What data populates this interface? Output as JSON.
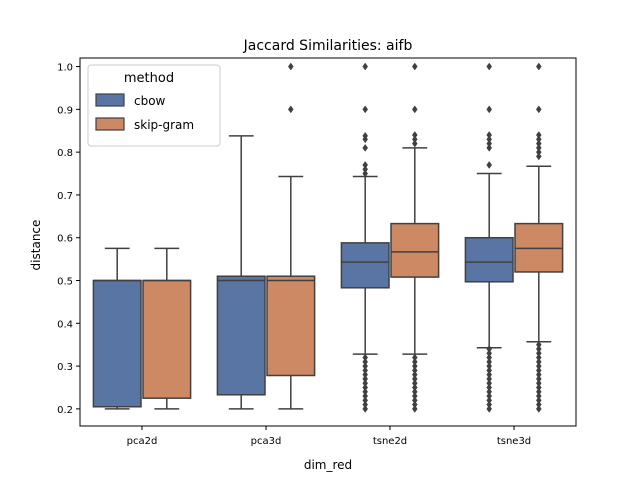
{
  "chart_data": {
    "type": "box",
    "title": "Jaccard Similarities: aifb",
    "xlabel": "dim_red",
    "ylabel": "distance",
    "categories": [
      "pca2d",
      "pca3d",
      "tsne2d",
      "tsne3d"
    ],
    "ylim": [
      0.16,
      1.02
    ],
    "yticks": [
      0.2,
      0.3,
      0.4,
      0.5,
      0.6,
      0.7,
      0.8,
      0.9,
      1.0
    ],
    "ytick_labels": [
      "0.2",
      "0.3",
      "0.4",
      "0.5",
      "0.6",
      "0.7",
      "0.8",
      "0.9",
      "1.0"
    ],
    "grid": false,
    "legend": {
      "title": "method",
      "position": "top-left"
    },
    "series": [
      {
        "name": "cbow",
        "color": "#5975a4",
        "boxes": [
          {
            "whislo": 0.2,
            "q1": 0.205,
            "med": 0.5,
            "q3": 0.5,
            "whishi": 0.575,
            "fliers": []
          },
          {
            "whislo": 0.2,
            "q1": 0.233,
            "med": 0.5,
            "q3": 0.51,
            "whishi": 0.838,
            "fliers": []
          },
          {
            "whislo": 0.328,
            "q1": 0.483,
            "med": 0.543,
            "q3": 0.588,
            "whishi": 0.743,
            "fliers": [
              1.0,
              0.9,
              0.838,
              0.83,
              0.81,
              0.77,
              0.76,
              0.75,
              0.32,
              0.31,
              0.3,
              0.29,
              0.28,
              0.27,
              0.26,
              0.25,
              0.24,
              0.23,
              0.22,
              0.21,
              0.2
            ]
          },
          {
            "whislo": 0.343,
            "q1": 0.497,
            "med": 0.543,
            "q3": 0.6,
            "whishi": 0.75,
            "fliers": [
              1.0,
              0.9,
              0.84,
              0.83,
              0.82,
              0.81,
              0.77,
              0.34,
              0.33,
              0.32,
              0.31,
              0.3,
              0.29,
              0.28,
              0.27,
              0.26,
              0.25,
              0.24,
              0.23,
              0.22,
              0.21,
              0.2
            ]
          }
        ]
      },
      {
        "name": "skip-gram",
        "color": "#cc8963",
        "boxes": [
          {
            "whislo": 0.2,
            "q1": 0.225,
            "med": 0.5,
            "q3": 0.5,
            "whishi": 0.575,
            "fliers": []
          },
          {
            "whislo": 0.2,
            "q1": 0.278,
            "med": 0.5,
            "q3": 0.51,
            "whishi": 0.743,
            "fliers": [
              1.0,
              0.9
            ]
          },
          {
            "whislo": 0.328,
            "q1": 0.508,
            "med": 0.567,
            "q3": 0.633,
            "whishi": 0.81,
            "fliers": [
              1.0,
              0.9,
              0.84,
              0.83,
              0.82,
              0.32,
              0.31,
              0.3,
              0.29,
              0.28,
              0.27,
              0.26,
              0.25,
              0.24,
              0.23,
              0.22,
              0.21,
              0.2
            ]
          },
          {
            "whislo": 0.357,
            "q1": 0.52,
            "med": 0.575,
            "q3": 0.633,
            "whishi": 0.767,
            "fliers": [
              1.0,
              0.9,
              0.84,
              0.83,
              0.82,
              0.81,
              0.8,
              0.79,
              0.35,
              0.34,
              0.33,
              0.32,
              0.31,
              0.3,
              0.29,
              0.28,
              0.27,
              0.26,
              0.25,
              0.24,
              0.23,
              0.22,
              0.21,
              0.2
            ]
          }
        ]
      }
    ]
  }
}
